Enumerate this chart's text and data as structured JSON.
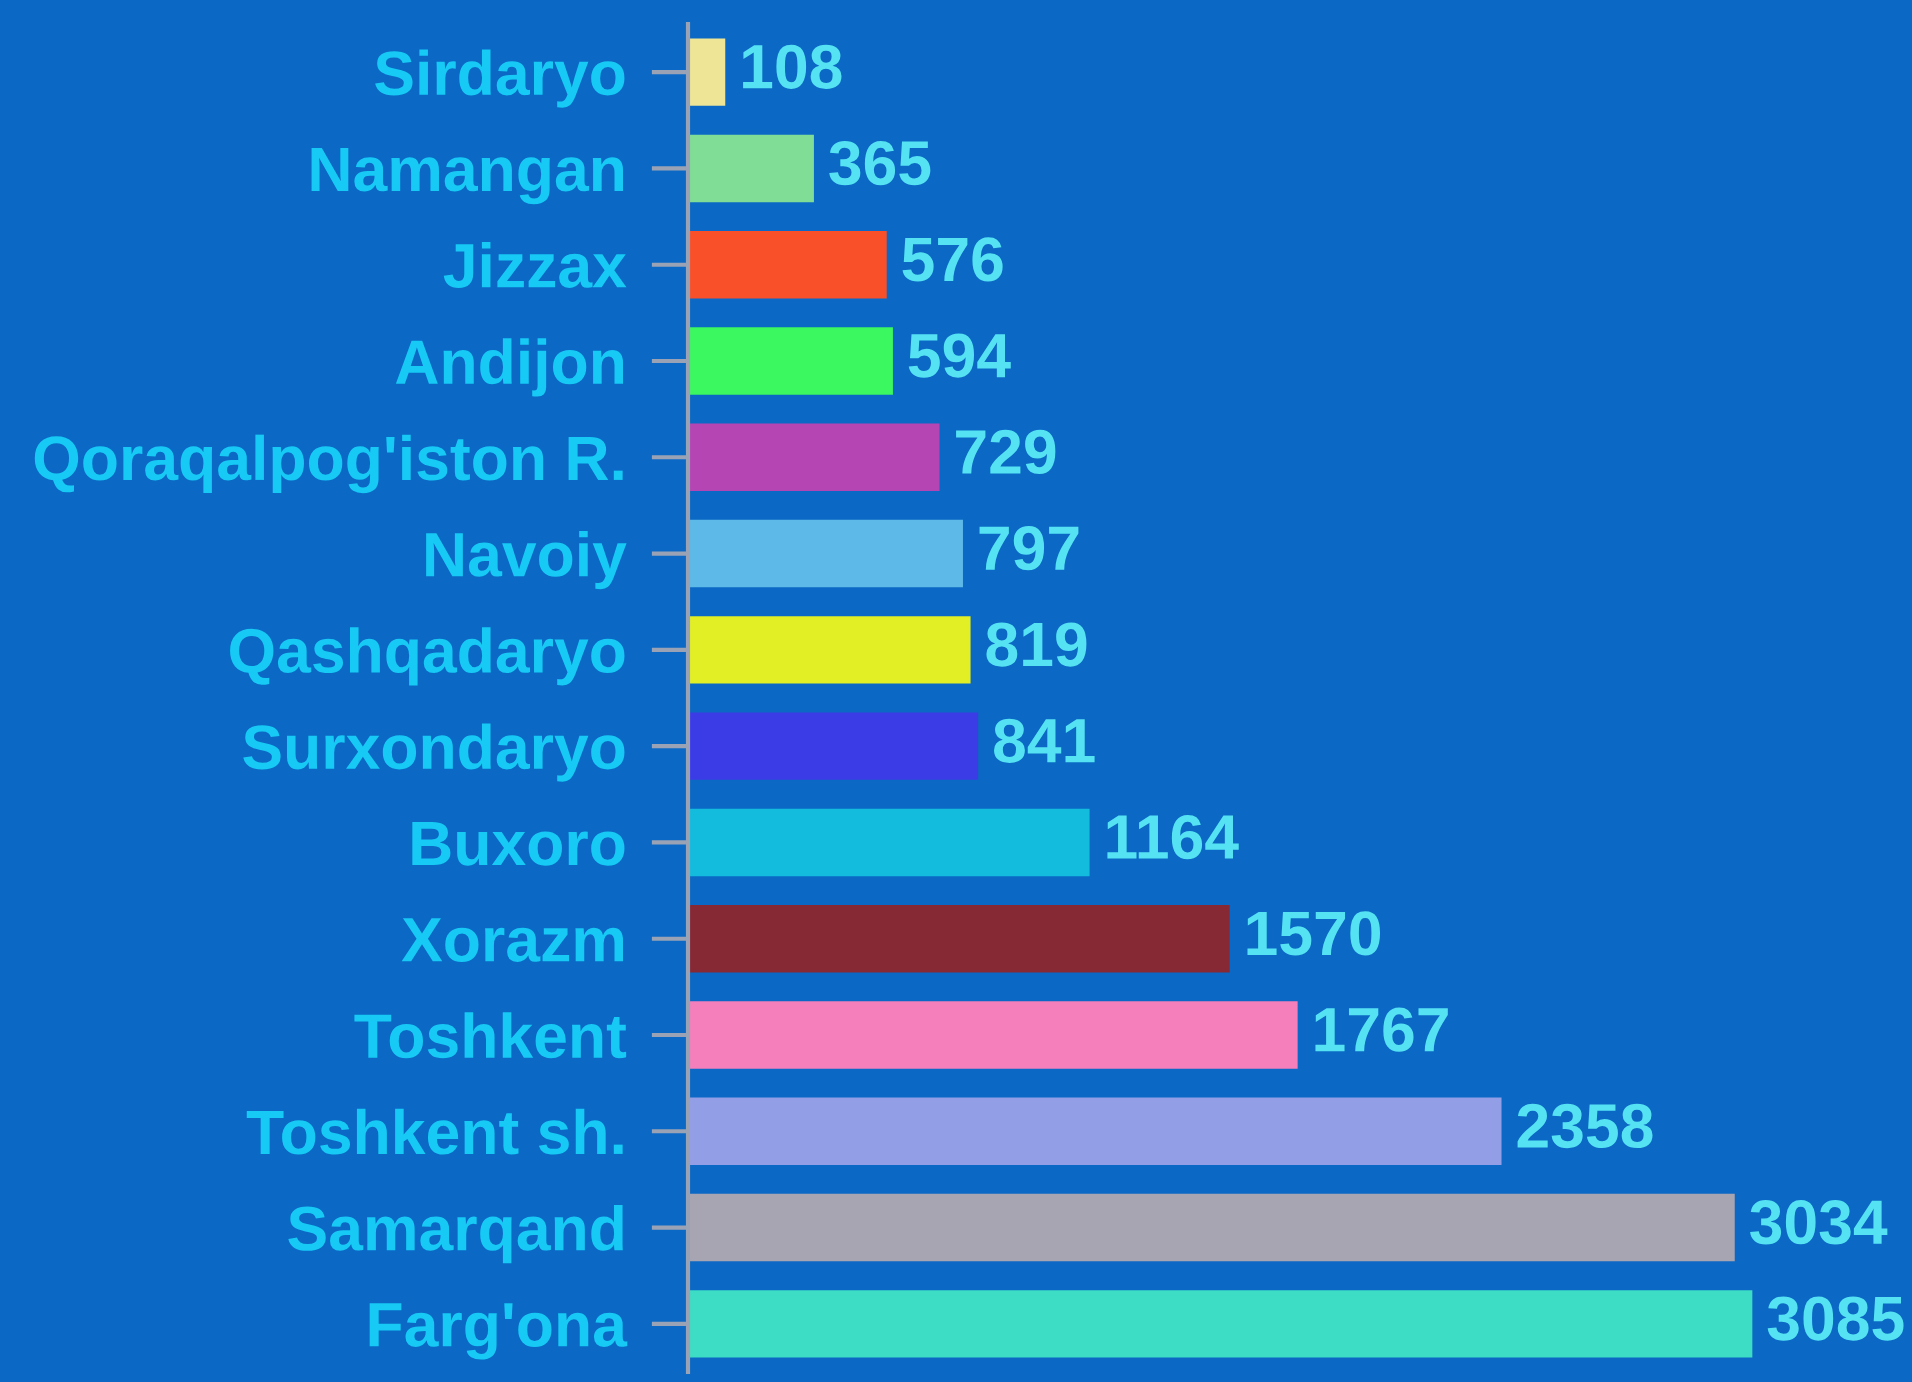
{
  "chart_data": {
    "type": "bar",
    "orientation": "horizontal",
    "categories": [
      "Sirdaryo",
      "Namangan",
      "Jizzax",
      "Andijon",
      "Qoraqalpog'iston R.",
      "Navoiy",
      "Qashqadaryo",
      "Surxondaryo",
      "Buxoro",
      "Xorazm",
      "Toshkent",
      "Toshkent sh.",
      "Samarqand",
      "Farg'ona"
    ],
    "values": [
      108,
      365,
      576,
      594,
      729,
      797,
      819,
      841,
      1164,
      1570,
      1767,
      2358,
      3034,
      3085
    ],
    "colors": [
      "#eee596",
      "#7fdd95",
      "#f9502a",
      "#3bf760",
      "#b545b3",
      "#5cb9e8",
      "#e3ef25",
      "#3c3ce6",
      "#13bcdd",
      "#862935",
      "#f47fbb",
      "#929fe6",
      "#a7a5b1",
      "#3ddcc4"
    ],
    "data_labels": true,
    "tick_labels": "y",
    "grid": false
  }
}
